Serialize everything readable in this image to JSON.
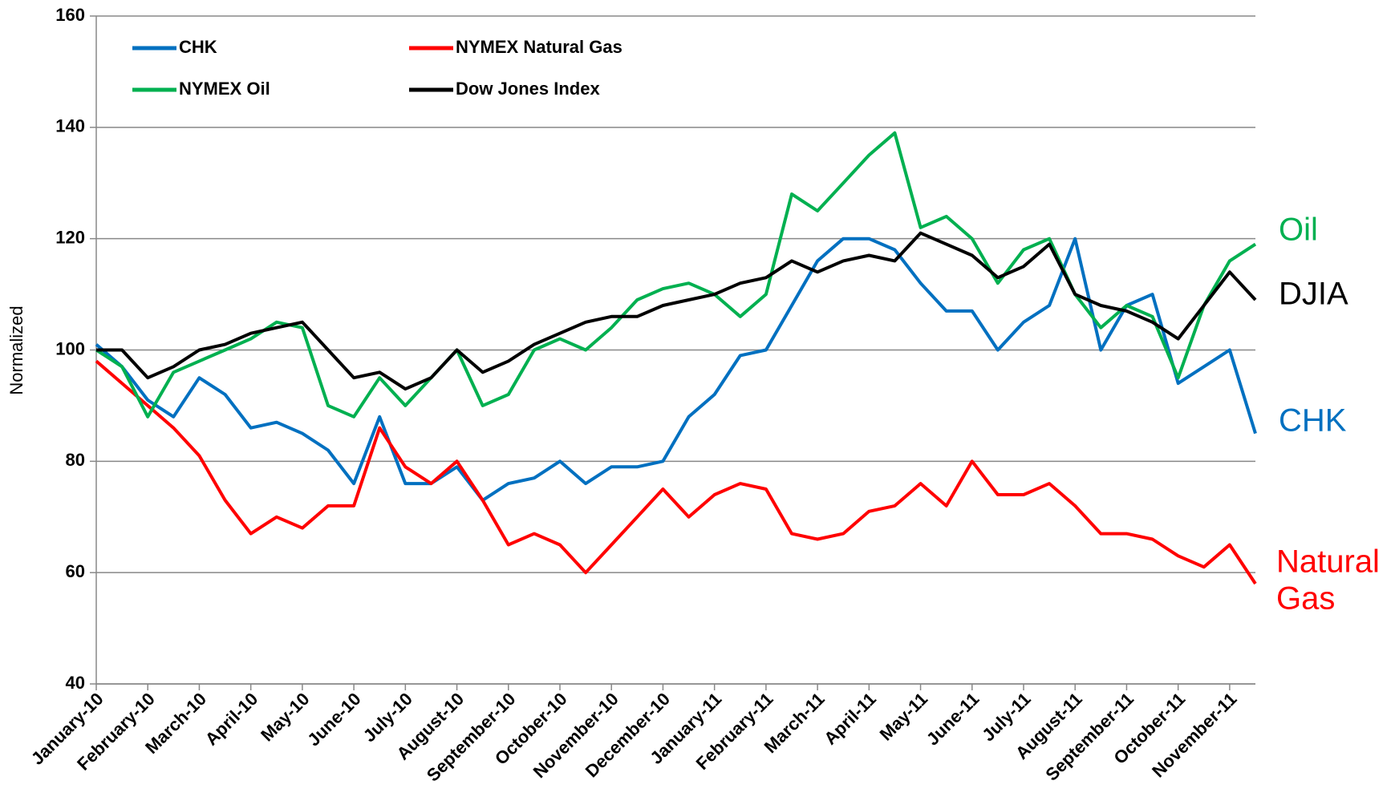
{
  "chart_data": {
    "type": "line",
    "y_label": "Normalized",
    "x": [
      0,
      0.5,
      1,
      1.5,
      2,
      2.5,
      3,
      3.5,
      4,
      4.5,
      5,
      5.5,
      6,
      6.5,
      7,
      7.5,
      8,
      8.5,
      9,
      9.5,
      10,
      10.5,
      11,
      11.5,
      12,
      12.5,
      13,
      13.5,
      14,
      14.5,
      15,
      15.5,
      16,
      16.5,
      17,
      17.5,
      18,
      18.5,
      19,
      19.5,
      20,
      20.5,
      21,
      21.5,
      22,
      22.5
    ],
    "xlim": [
      0,
      22.5
    ],
    "xticks": [
      {
        "value": 0,
        "label": "January-10"
      },
      {
        "value": 1,
        "label": "February-10"
      },
      {
        "value": 2,
        "label": "March-10"
      },
      {
        "value": 3,
        "label": "April-10"
      },
      {
        "value": 4,
        "label": "May-10"
      },
      {
        "value": 5,
        "label": "June-10"
      },
      {
        "value": 6,
        "label": "July-10"
      },
      {
        "value": 7,
        "label": "August-10"
      },
      {
        "value": 8,
        "label": "September-10"
      },
      {
        "value": 9,
        "label": "October-10"
      },
      {
        "value": 10,
        "label": "November-10"
      },
      {
        "value": 11,
        "label": "December-10"
      },
      {
        "value": 12,
        "label": "January-11"
      },
      {
        "value": 13,
        "label": "February-11"
      },
      {
        "value": 14,
        "label": "March-11"
      },
      {
        "value": 15,
        "label": "April-11"
      },
      {
        "value": 16,
        "label": "May-11"
      },
      {
        "value": 17,
        "label": "June-11"
      },
      {
        "value": 18,
        "label": "July-11"
      },
      {
        "value": 19,
        "label": "August-11"
      },
      {
        "value": 20,
        "label": "September-11"
      },
      {
        "value": 21,
        "label": "October-11"
      },
      {
        "value": 22,
        "label": "November-11"
      }
    ],
    "ylim": [
      40,
      160
    ],
    "yticks": [
      40,
      60,
      80,
      100,
      120,
      140,
      160
    ],
    "grid": true,
    "legend": "top-left",
    "series": [
      {
        "name": "CHK",
        "color": "#0070c0",
        "values": [
          101,
          97,
          91,
          88,
          95,
          92,
          86,
          87,
          85,
          82,
          76,
          88,
          76,
          76,
          79,
          73,
          76,
          77,
          80,
          76,
          79,
          79,
          80,
          88,
          92,
          99,
          100,
          108,
          116,
          120,
          120,
          118,
          112,
          107,
          107,
          100,
          105,
          108,
          120,
          100,
          108,
          110,
          94,
          97,
          100,
          85
        ]
      },
      {
        "name": "NYMEX Natural Gas",
        "color": "#ff0000",
        "values": [
          98,
          94,
          90,
          86,
          81,
          73,
          67,
          70,
          68,
          72,
          72,
          86,
          79,
          76,
          80,
          73,
          65,
          67,
          65,
          60,
          65,
          70,
          75,
          70,
          74,
          76,
          75,
          67,
          66,
          67,
          71,
          72,
          76,
          72,
          80,
          74,
          74,
          76,
          72,
          67,
          67,
          66,
          63,
          61,
          65,
          58
        ]
      },
      {
        "name": "NYMEX Oil",
        "color": "#00b050",
        "values": [
          100,
          97,
          88,
          96,
          98,
          100,
          102,
          105,
          104,
          90,
          88,
          95,
          90,
          95,
          100,
          90,
          92,
          100,
          102,
          100,
          104,
          109,
          111,
          112,
          110,
          106,
          110,
          128,
          125,
          130,
          135,
          139,
          122,
          124,
          120,
          112,
          118,
          120,
          110,
          104,
          108,
          106,
          95,
          108,
          116,
          119
        ]
      },
      {
        "name": "Dow Jones Index",
        "color": "#000000",
        "values": [
          100,
          100,
          95,
          97,
          100,
          101,
          103,
          104,
          105,
          100,
          95,
          96,
          93,
          95,
          100,
          96,
          98,
          101,
          103,
          105,
          106,
          106,
          108,
          109,
          110,
          112,
          113,
          116,
          114,
          116,
          117,
          116,
          121,
          119,
          117,
          113,
          115,
          119,
          110,
          108,
          107,
          105,
          102,
          108,
          114,
          109
        ]
      }
    ],
    "annotations": [
      {
        "text": "Oil",
        "color": "#00b050"
      },
      {
        "text": "DJIA",
        "color": "#000000"
      },
      {
        "text": "CHK",
        "color": "#0070c0"
      },
      {
        "text": "Natural",
        "color": "#ff0000"
      },
      {
        "text": "Gas",
        "color": "#ff0000"
      }
    ]
  }
}
